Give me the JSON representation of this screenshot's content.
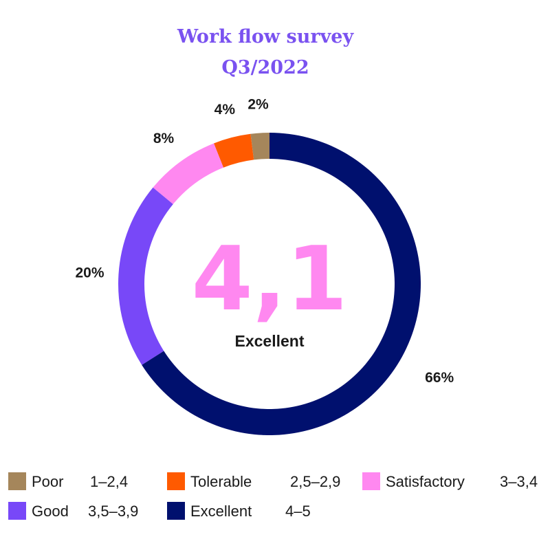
{
  "chart_data": {
    "type": "pie",
    "title_line1": "Work flow survey",
    "title_line2": "Q3/2022",
    "center_value": "4,1",
    "center_label": "Excellent",
    "slices": [
      {
        "name": "Poor",
        "range": "1–2,4",
        "value": 2,
        "label": "2%",
        "color": "#a5865b"
      },
      {
        "name": "Tolerable",
        "range": "2,5–2,9",
        "value": 4,
        "label": "4%",
        "color": "#ff5a00"
      },
      {
        "name": "Satisfactory",
        "range": "3–3,4",
        "value": 8,
        "label": "8%",
        "color": "#ff88f0"
      },
      {
        "name": "Good",
        "range": "3,5–3,9",
        "value": 20,
        "label": "20%",
        "color": "#7848f8"
      },
      {
        "name": "Excellent",
        "range": "4–5",
        "value": 66,
        "label": "66%",
        "color": "#00106e"
      }
    ],
    "legend_position": "bottom"
  }
}
